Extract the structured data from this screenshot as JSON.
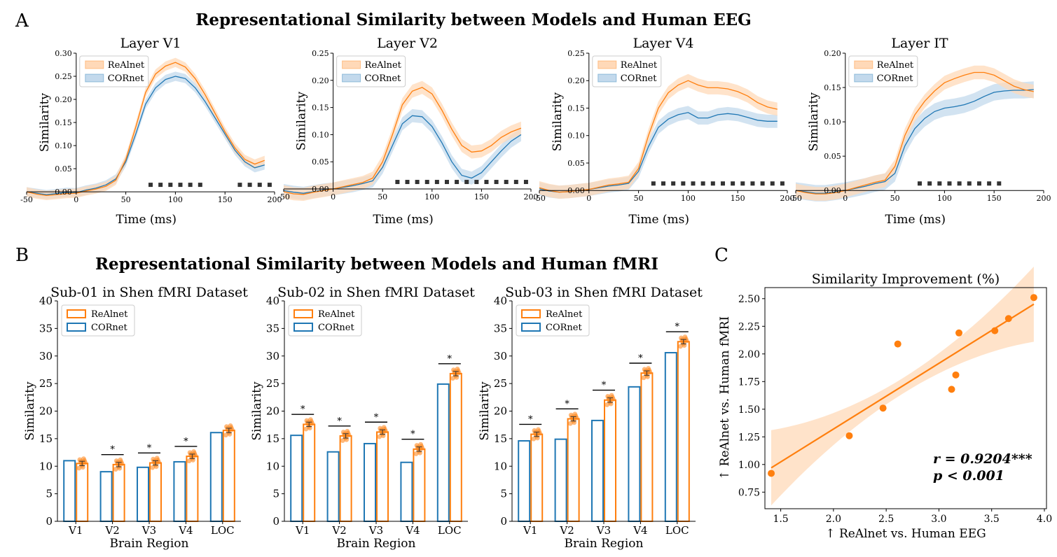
{
  "colors": {
    "realnet": "#ff7f0e",
    "cornet": "#1f77b4",
    "realnet_fill": "#ffd9b8",
    "cornet_fill": "#c3d9ec",
    "sig": "#333333"
  },
  "panel_a": {
    "letter": "A",
    "title": "Representational Similarity between Models and Human EEG",
    "legend": [
      "ReAlnet",
      "CORnet"
    ],
    "xlabel": "Time (ms)",
    "ylabel": "Similarity"
  },
  "panel_b": {
    "letter": "B",
    "title": "Representational Similarity between Models and Human fMRI",
    "legend": [
      "ReAlnet",
      "CORnet"
    ],
    "xlabel": "Brain Region",
    "ylabel": "Similarity",
    "sig_marker": "*"
  },
  "panel_c": {
    "letter": "C",
    "title": "Similarity Improvement (%)",
    "xlabel": "↑ ReAlnet vs. Human EEG",
    "ylabel": "↑ ReAlnet vs. Human fMRI",
    "annotation": [
      "r = 0.9204***",
      "p < 0.001"
    ]
  },
  "chart_data": [
    {
      "type": "line",
      "title": "Layer V1",
      "xlabel": "Time (ms)",
      "ylabel": "Similarity",
      "xlim": [
        -50,
        200
      ],
      "ylim": [
        -0.015,
        0.3
      ],
      "xticks": [
        -50,
        0,
        50,
        100,
        150,
        200
      ],
      "yticks": [
        0.0,
        0.05,
        0.1,
        0.15,
        0.2,
        0.25,
        0.3
      ],
      "ytick_labels": [
        "0.00",
        "0.05",
        "0.10",
        "0.15",
        "0.20",
        "0.25",
        "0.30"
      ],
      "x": [
        -50,
        -40,
        -30,
        -20,
        -10,
        0,
        10,
        20,
        30,
        40,
        50,
        60,
        70,
        80,
        90,
        100,
        110,
        120,
        130,
        140,
        150,
        160,
        170,
        180,
        190
      ],
      "series": [
        {
          "name": "ReAlnet",
          "values": [
            0.0,
            -0.005,
            -0.008,
            -0.006,
            -0.004,
            -0.003,
            0.002,
            0.006,
            0.012,
            0.025,
            0.07,
            0.14,
            0.215,
            0.255,
            0.272,
            0.28,
            0.27,
            0.245,
            0.21,
            0.17,
            0.13,
            0.095,
            0.07,
            0.06,
            0.068
          ],
          "band": 0.01
        },
        {
          "name": "CORnet",
          "values": [
            0.0,
            -0.003,
            -0.006,
            -0.004,
            -0.001,
            -0.002,
            0.004,
            0.008,
            0.015,
            0.028,
            0.065,
            0.125,
            0.19,
            0.225,
            0.243,
            0.25,
            0.245,
            0.225,
            0.195,
            0.16,
            0.125,
            0.09,
            0.065,
            0.052,
            0.058
          ],
          "band": 0.01
        }
      ],
      "significance_x": [
        75,
        85,
        95,
        105,
        115,
        125,
        165,
        175,
        185,
        195
      ],
      "legend": [
        "ReAlnet",
        "CORnet"
      ]
    },
    {
      "type": "line",
      "title": "Layer V2",
      "xlabel": "Time (ms)",
      "ylabel": "Similarity",
      "xlim": [
        -50,
        200
      ],
      "ylim": [
        -0.018,
        0.25
      ],
      "xticks": [
        -50,
        0,
        50,
        100,
        150,
        200
      ],
      "yticks": [
        0.0,
        0.05,
        0.1,
        0.15,
        0.2,
        0.25
      ],
      "ytick_labels": [
        "0.00",
        "0.05",
        "0.10",
        "0.15",
        "0.20",
        "0.25"
      ],
      "x": [
        -50,
        -40,
        -30,
        -20,
        -10,
        0,
        10,
        20,
        30,
        40,
        50,
        60,
        70,
        80,
        90,
        100,
        110,
        120,
        130,
        140,
        150,
        160,
        170,
        180,
        190
      ],
      "series": [
        {
          "name": "ReAlnet",
          "values": [
            -0.005,
            -0.009,
            -0.01,
            -0.006,
            -0.003,
            0.0,
            0.004,
            0.008,
            0.012,
            0.02,
            0.05,
            0.1,
            0.155,
            0.18,
            0.187,
            0.175,
            0.145,
            0.11,
            0.08,
            0.068,
            0.07,
            0.08,
            0.095,
            0.105,
            0.112
          ],
          "band": 0.012
        },
        {
          "name": "CORnet",
          "values": [
            -0.003,
            -0.006,
            -0.008,
            -0.005,
            -0.002,
            0.0,
            0.003,
            0.006,
            0.01,
            0.015,
            0.04,
            0.08,
            0.12,
            0.135,
            0.133,
            0.115,
            0.085,
            0.05,
            0.025,
            0.02,
            0.03,
            0.05,
            0.07,
            0.088,
            0.1
          ],
          "band": 0.012
        }
      ],
      "significance_x": [
        65,
        75,
        85,
        95,
        105,
        115,
        125,
        135,
        145,
        155,
        165,
        175,
        185,
        195
      ],
      "legend": [
        "ReAlnet",
        "CORnet"
      ]
    },
    {
      "type": "line",
      "title": "Layer V4",
      "xlabel": "Time (ms)",
      "ylabel": "Similarity",
      "xlim": [
        -50,
        200
      ],
      "ylim": [
        -0.015,
        0.25
      ],
      "xticks": [
        -50,
        0,
        50,
        100,
        150,
        200
      ],
      "yticks": [
        0.0,
        0.05,
        0.1,
        0.15,
        0.2,
        0.25
      ],
      "ytick_labels": [
        "0.00",
        "0.05",
        "0.10",
        "0.15",
        "0.20",
        "0.25"
      ],
      "x": [
        -50,
        -40,
        -30,
        -20,
        -10,
        0,
        10,
        20,
        30,
        40,
        50,
        60,
        70,
        80,
        90,
        100,
        110,
        120,
        130,
        140,
        150,
        160,
        170,
        180,
        190
      ],
      "series": [
        {
          "name": "ReAlnet",
          "values": [
            0.005,
            0.0,
            -0.003,
            -0.002,
            0.0,
            0.002,
            0.006,
            0.01,
            0.012,
            0.015,
            0.04,
            0.1,
            0.15,
            0.178,
            0.192,
            0.2,
            0.192,
            0.187,
            0.187,
            0.185,
            0.18,
            0.172,
            0.16,
            0.152,
            0.148
          ],
          "band": 0.012
        },
        {
          "name": "CORnet",
          "values": [
            0.003,
            -0.001,
            -0.003,
            -0.002,
            0.0,
            0.002,
            0.005,
            0.008,
            0.01,
            0.013,
            0.035,
            0.08,
            0.115,
            0.13,
            0.138,
            0.142,
            0.132,
            0.132,
            0.138,
            0.14,
            0.138,
            0.133,
            0.128,
            0.126,
            0.126
          ],
          "band": 0.012
        }
      ],
      "significance_x": [
        65,
        75,
        85,
        95,
        105,
        115,
        125,
        135,
        145,
        155,
        165,
        175,
        185,
        195
      ],
      "legend": [
        "ReAlnet",
        "CORnet"
      ]
    },
    {
      "type": "line",
      "title": "Layer IT",
      "xlabel": "Time (ms)",
      "ylabel": "Similarity",
      "xlim": [
        -50,
        200
      ],
      "ylim": [
        -0.012,
        0.2
      ],
      "xticks": [
        -50,
        0,
        50,
        100,
        150,
        200
      ],
      "yticks": [
        0.0,
        0.05,
        0.1,
        0.15,
        0.2
      ],
      "ytick_labels": [
        "0.00",
        "0.05",
        "0.10",
        "0.15",
        "0.20"
      ],
      "x": [
        -50,
        -40,
        -30,
        -20,
        -10,
        0,
        10,
        20,
        30,
        40,
        50,
        60,
        70,
        80,
        90,
        100,
        110,
        120,
        130,
        140,
        150,
        160,
        170,
        180,
        190
      ],
      "series": [
        {
          "name": "ReAlnet",
          "values": [
            0.0,
            -0.003,
            -0.005,
            -0.005,
            -0.003,
            0.0,
            0.004,
            0.008,
            0.012,
            0.015,
            0.035,
            0.08,
            0.11,
            0.13,
            0.145,
            0.157,
            0.163,
            0.168,
            0.172,
            0.172,
            0.168,
            0.16,
            0.152,
            0.147,
            0.144
          ],
          "band": 0.01
        },
        {
          "name": "CORnet",
          "values": [
            0.0,
            -0.002,
            -0.004,
            -0.004,
            -0.002,
            0.0,
            0.003,
            0.006,
            0.01,
            0.013,
            0.025,
            0.065,
            0.09,
            0.105,
            0.115,
            0.12,
            0.122,
            0.125,
            0.13,
            0.137,
            0.143,
            0.145,
            0.146,
            0.146,
            0.147
          ],
          "band": 0.012
        }
      ],
      "significance_x": [
        75,
        85,
        95,
        105,
        115,
        125,
        135,
        145,
        155
      ],
      "legend": [
        "ReAlnet",
        "CORnet"
      ]
    },
    {
      "type": "bar",
      "title": "Sub-01 in Shen fMRI Dataset",
      "xlabel": "Brain Region",
      "ylabel": "Similarity",
      "ylim": [
        0,
        40
      ],
      "yticks": [
        0,
        5,
        10,
        15,
        20,
        25,
        30,
        35,
        40
      ],
      "categories": [
        "V1",
        "V2",
        "V3",
        "V4",
        "LOC"
      ],
      "series": [
        {
          "name": "CORnet",
          "values": [
            11.0,
            9.0,
            9.8,
            10.8,
            16.1
          ]
        },
        {
          "name": "ReAlnet",
          "values": [
            10.5,
            10.3,
            10.6,
            11.8,
            16.5
          ]
        }
      ],
      "significant": [
        false,
        true,
        true,
        true,
        false
      ],
      "legend": [
        "ReAlnet",
        "CORnet"
      ]
    },
    {
      "type": "bar",
      "title": "Sub-02 in Shen fMRI Dataset",
      "xlabel": "Brain Region",
      "ylabel": "Similarity",
      "ylim": [
        0,
        40
      ],
      "yticks": [
        0,
        5,
        10,
        15,
        20,
        25,
        30,
        35,
        40
      ],
      "categories": [
        "V1",
        "V2",
        "V3",
        "V4",
        "LOC"
      ],
      "series": [
        {
          "name": "CORnet",
          "values": [
            15.6,
            12.6,
            14.1,
            10.7,
            24.9
          ]
        },
        {
          "name": "ReAlnet",
          "values": [
            17.6,
            15.5,
            16.2,
            13.1,
            26.8
          ]
        }
      ],
      "significant": [
        true,
        true,
        true,
        true,
        true
      ],
      "legend": [
        "ReAlnet",
        "CORnet"
      ]
    },
    {
      "type": "bar",
      "title": "Sub-03 in Shen fMRI Dataset",
      "xlabel": "Brain Region",
      "ylabel": "Similarity",
      "ylim": [
        0,
        40
      ],
      "yticks": [
        0,
        5,
        10,
        15,
        20,
        25,
        30,
        35,
        40
      ],
      "categories": [
        "V1",
        "V2",
        "V3",
        "V4",
        "LOC"
      ],
      "series": [
        {
          "name": "CORnet",
          "values": [
            14.6,
            14.9,
            18.3,
            24.4,
            30.6
          ]
        },
        {
          "name": "ReAlnet",
          "values": [
            15.8,
            18.6,
            22.0,
            26.9,
            32.6
          ]
        }
      ],
      "significant": [
        true,
        true,
        true,
        true,
        true
      ],
      "legend": [
        "ReAlnet",
        "CORnet"
      ]
    },
    {
      "type": "scatter",
      "title": "Similarity Improvement (%)",
      "xlabel": "↑ ReAlnet vs. Human EEG",
      "ylabel": "↑ ReAlnet vs. Human fMRI",
      "xlim": [
        1.35,
        4.02
      ],
      "ylim": [
        0.6,
        2.6
      ],
      "xticks": [
        1.5,
        2.0,
        2.5,
        3.0,
        3.5,
        4.0
      ],
      "xtick_labels": [
        "1.5",
        "2.0",
        "2.5",
        "3.0",
        "3.5",
        "4.0"
      ],
      "yticks": [
        0.75,
        1.0,
        1.25,
        1.5,
        1.75,
        2.0,
        2.25,
        2.5
      ],
      "ytick_labels": [
        "0.75",
        "1.00",
        "1.25",
        "1.50",
        "1.75",
        "2.00",
        "2.25",
        "2.50"
      ],
      "x": [
        1.41,
        2.15,
        2.47,
        2.61,
        3.12,
        3.16,
        3.19,
        3.53,
        3.66,
        3.9
      ],
      "y": [
        0.92,
        1.26,
        1.51,
        2.09,
        1.68,
        1.81,
        2.19,
        2.21,
        2.32,
        2.51
      ],
      "fit": {
        "x": [
          1.41,
          3.9
        ],
        "y": [
          0.97,
          2.45
        ]
      },
      "annotation": [
        "r = 0.9204***",
        "p < 0.001"
      ]
    }
  ]
}
